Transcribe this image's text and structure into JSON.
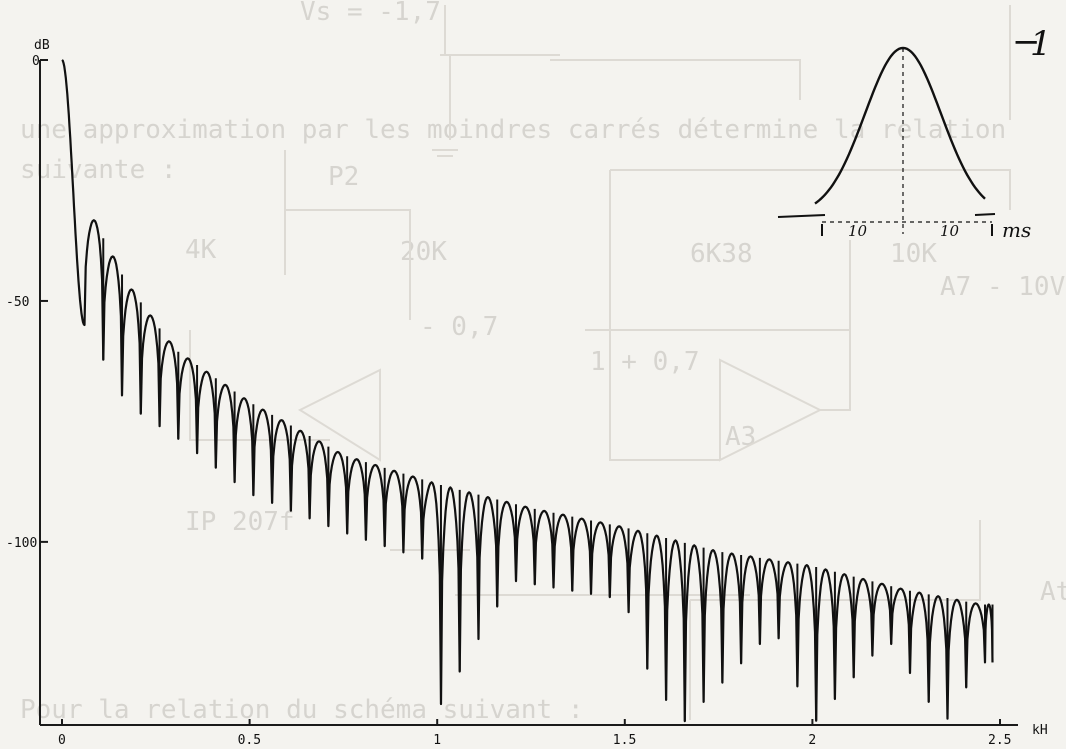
{
  "chart_data": {
    "type": "line",
    "ylabel_unit": "dB",
    "xlabel_unit": "kH",
    "y_ticks": [
      "0",
      "-50",
      "-100"
    ],
    "x_ticks": [
      "0",
      "0.5",
      "1",
      "1.5",
      "2",
      "2.5"
    ],
    "ylim": [
      -138,
      0
    ],
    "xlim": [
      0,
      2.5
    ],
    "main_lobe": {
      "width_khz": 0.06
    },
    "first_sidelobe_db": -31,
    "envelope_db": [
      [
        0.07,
        -31
      ],
      [
        0.17,
        -46
      ],
      [
        0.3,
        -60
      ],
      [
        0.5,
        -71
      ],
      [
        0.75,
        -82
      ],
      [
        1.0,
        -88
      ],
      [
        1.25,
        -93
      ],
      [
        1.5,
        -97
      ],
      [
        1.75,
        -102
      ],
      [
        2.0,
        -105
      ],
      [
        2.25,
        -110
      ],
      [
        2.45,
        -113
      ]
    ],
    "lobe_spacing_khz": 0.05,
    "notch_depth_db": [
      [
        0.07,
        -55
      ],
      [
        0.12,
        -64
      ],
      [
        0.17,
        -71
      ],
      [
        0.22,
        -74
      ],
      [
        0.3,
        -78
      ],
      [
        0.5,
        -90
      ],
      [
        0.75,
        -98
      ],
      [
        0.98,
        -104
      ],
      [
        1.0,
        -135
      ],
      [
        1.2,
        -108
      ],
      [
        1.5,
        -112
      ],
      [
        1.55,
        -125
      ],
      [
        1.65,
        -138
      ],
      [
        1.9,
        -118
      ],
      [
        2.0,
        -138
      ],
      [
        2.2,
        -120
      ],
      [
        2.35,
        -138
      ],
      [
        2.45,
        -125
      ]
    ],
    "inset": {
      "type": "line",
      "label": "1",
      "x_unit": "ms",
      "x_tick_labels": [
        "10",
        "10"
      ],
      "description_shape": "gaussian"
    }
  },
  "background_bleed": {
    "lines": [
      "Vs = -1,7",
      "une approximation par les moindres carrés détermine la relation",
      "suivante :",
      "P2",
      "4K",
      "20K",
      "6K38",
      "10K",
      "- 0,7",
      "1 + 0,7",
      "A3",
      "Pour la relation du schéma suivant :",
      "At",
      "A7 - 10V",
      "IP 207f"
    ]
  }
}
